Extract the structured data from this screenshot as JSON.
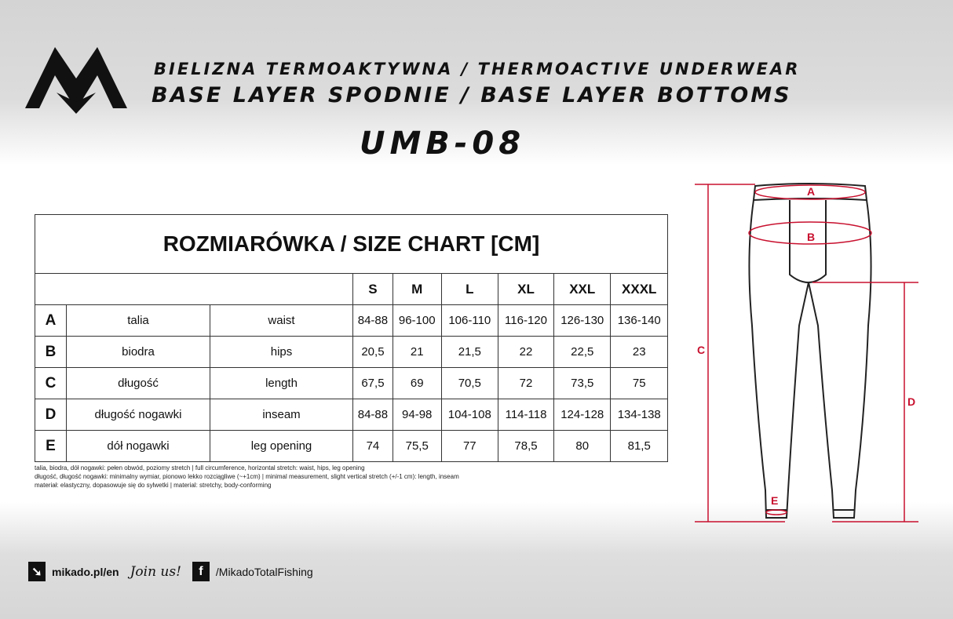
{
  "header": {
    "line1": "Bielizna termoaktywna / Thermoactive underwear",
    "line2": "Base layer spodnie / Base layer bottoms",
    "model": "UMB-08"
  },
  "logo": "MIKADO M",
  "table": {
    "title": "ROZMIARÓWKA / SIZE CHART [CM]",
    "sizes": [
      "S",
      "M",
      "L",
      "XL",
      "XXL",
      "XXXL"
    ],
    "rows": [
      {
        "letter": "A",
        "pl": "talia",
        "en": "waist",
        "values": [
          "84-88",
          "96-100",
          "106-110",
          "116-120",
          "126-130",
          "136-140"
        ]
      },
      {
        "letter": "B",
        "pl": "biodra",
        "en": "hips",
        "values": [
          "20,5",
          "21",
          "21,5",
          "22",
          "22,5",
          "23"
        ]
      },
      {
        "letter": "C",
        "pl": "długość",
        "en": "length",
        "values": [
          "67,5",
          "69",
          "70,5",
          "72",
          "73,5",
          "75"
        ]
      },
      {
        "letter": "D",
        "pl": "długość nogawki",
        "en": "inseam",
        "values": [
          "84-88",
          "94-98",
          "104-108",
          "114-118",
          "124-128",
          "134-138"
        ]
      },
      {
        "letter": "E",
        "pl": "dół nogawki",
        "en": "leg opening",
        "values": [
          "74",
          "75,5",
          "77",
          "78,5",
          "80",
          "81,5"
        ]
      }
    ]
  },
  "notes": [
    "talia, biodra, dół nogawki: pełen obwód, poziomy stretch  |  full circumference, horizontal stretch: waist, hips, leg opening",
    "długość, długość nogawki: minimalny wymiar, pionowo lekko rozciągliwe (~+1cm)  |  minimal measurement, slight vertical stretch (+/-1 cm): length, inseam",
    "materiał: elastyczny, dopasowuje się do sylwetki  |  material: stretchy, body-conforming"
  ],
  "diagram": {
    "labels": [
      "A",
      "B",
      "C",
      "D",
      "E"
    ],
    "color": "#c8102e"
  },
  "footer": {
    "website": "mikado.pl/en",
    "join": "Join us!",
    "facebook": "/MikadoTotalFishing"
  }
}
